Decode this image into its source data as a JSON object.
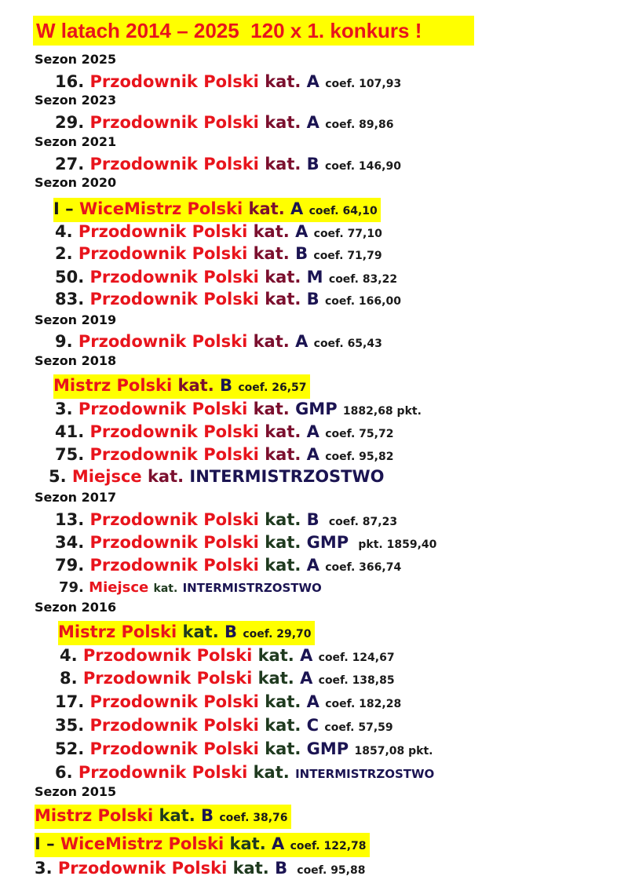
{
  "title": "W latach 2014 – 2025  120 x 1. konkurs !",
  "colors": {
    "highlight": "#ffff00",
    "name": "#e8141c",
    "kat_maroon": "#7b0f2e",
    "kat_green": "#1f3a1f",
    "category": "#1b1452"
  },
  "seasons": [
    {
      "label": "Sezon 2025",
      "entries": [
        {
          "rank": "16.",
          "name": "Przodownik Polski",
          "kat": "kat.",
          "cat": "A",
          "coef": "coef. 107,93"
        }
      ]
    },
    {
      "label": "Sezon 2023",
      "entries": [
        {
          "rank": "29.",
          "name": "Przodownik Polski",
          "kat": "kat.",
          "cat": "A",
          "coef": "coef. 89,86"
        }
      ]
    },
    {
      "label": "Sezon 2021",
      "entries": [
        {
          "rank": "27.",
          "name": "Przodownik Polski",
          "kat": "kat.",
          "cat": "B",
          "coef": "coef. 146,90"
        }
      ]
    },
    {
      "label": "Sezon 2020",
      "entries": [
        {
          "rank": "I –",
          "name": "WiceMistrz Polski",
          "kat": "kat.",
          "cat": "A",
          "coef": "coef. 64,10",
          "highlight": true
        },
        {
          "rank": "4.",
          "name": "Przodownik Polski",
          "kat": "kat.",
          "cat": "A",
          "coef": "coef. 77,10"
        },
        {
          "rank": "2.",
          "name": "Przodownik Polski",
          "kat": "kat.",
          "cat": "B",
          "coef": "coef. 71,79"
        },
        {
          "rank": "50.",
          "name": "Przodownik Polski",
          "kat": "kat.",
          "cat": "M",
          "coef": "coef. 83,22"
        },
        {
          "rank": "83.",
          "name": "Przodownik Polski",
          "kat": "kat.",
          "cat": "B",
          "coef": "coef. 166,00"
        }
      ]
    },
    {
      "label": "Sezon 2019",
      "entries": [
        {
          "rank": "9.",
          "name": "Przodownik Polski",
          "kat": "kat.",
          "cat": "A",
          "coef": "coef. 65,43"
        }
      ]
    },
    {
      "label": "Sezon 2018",
      "entries": [
        {
          "rank": "",
          "name": "Mistrz Polski",
          "kat": "kat.",
          "cat": "B",
          "coef": "coef. 26,57",
          "highlight": true
        },
        {
          "rank": "3.",
          "name": "Przodownik Polski",
          "kat": "kat.",
          "cat": "GMP",
          "coef": "1882,68 pkt."
        },
        {
          "rank": "41.",
          "name": "Przodownik Polski",
          "kat": "kat.",
          "cat": "A",
          "coef": "coef. 75,72"
        },
        {
          "rank": "75.",
          "name": "Przodownik Polski",
          "kat": "kat.",
          "cat": "A",
          "coef": "coef. 95,82"
        },
        {
          "rank": "5.",
          "name": "Miejsce",
          "kat": "kat.",
          "cat": "INTERMISTRZOSTWO",
          "coef": ""
        }
      ]
    },
    {
      "label": "Sezon 2017",
      "entries": [
        {
          "rank": "13.",
          "name": "Przodownik Polski",
          "kat": "kat.",
          "cat": "B",
          "coef": " coef. 87,23"
        },
        {
          "rank": "34.",
          "name": "Przodownik Polski",
          "kat": "kat.",
          "cat": "GMP",
          "coef": " pkt. 1859,40"
        },
        {
          "rank": "79.",
          "name": "Przodownik Polski",
          "kat": "kat.",
          "cat": "A",
          "coef": "coef. 366,74"
        },
        {
          "rank": "79.",
          "name": "Miejsce",
          "kat": "kat.",
          "cat": "INTERMISTRZOSTWO",
          "coef": "",
          "small": true
        }
      ]
    },
    {
      "label": "Sezon 2016",
      "entries": [
        {
          "rank": "",
          "name": "Mistrz Polski",
          "kat": "kat.",
          "cat": "B",
          "coef": "coef. 29,70",
          "highlight": true
        },
        {
          "rank": "4.",
          "name": "Przodownik Polski",
          "kat": "kat.",
          "cat": "A",
          "coef": "coef. 124,67"
        },
        {
          "rank": "8.",
          "name": "Przodownik Polski",
          "kat": "kat.",
          "cat": "A",
          "coef": "coef. 138,85"
        },
        {
          "rank": "17.",
          "name": "Przodownik Polski",
          "kat": "kat.",
          "cat": "A",
          "coef": "coef. 182,28"
        },
        {
          "rank": "35.",
          "name": "Przodownik Polski",
          "kat": "kat.",
          "cat": "C",
          "coef": "coef. 57,59"
        },
        {
          "rank": "52.",
          "name": "Przodownik Polski",
          "kat": "kat.",
          "cat": "GMP",
          "coef": "1857,08 pkt."
        },
        {
          "rank": "6.",
          "name": "Przodownik Polski",
          "kat": "kat.",
          "cat": "INTERMISTRZOSTWO",
          "coef": "",
          "smallcat": true
        }
      ]
    },
    {
      "label": "Sezon 2015",
      "entries": [
        {
          "rank": "",
          "name": "Mistrz Polski",
          "kat": "kat.",
          "cat": "B",
          "coef": "coef. 38,76",
          "highlight": true
        },
        {
          "rank": "I –",
          "name": "WiceMistrz Polski",
          "kat": "kat.",
          "cat": "A",
          "coef": "coef. 122,78",
          "highlight": true
        },
        {
          "rank": "3.",
          "name": "Przodownik Polski",
          "kat": "kat.",
          "cat": "B",
          "coef": " coef. 95,88"
        }
      ]
    }
  ]
}
